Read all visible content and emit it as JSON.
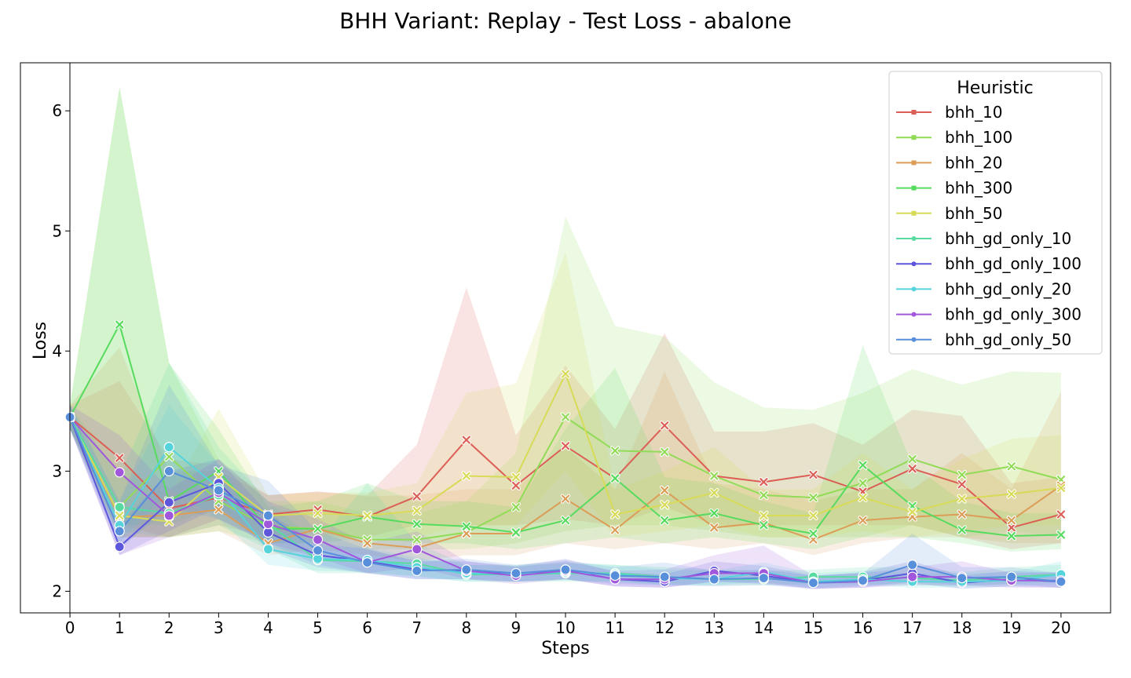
{
  "chart_data": {
    "type": "line",
    "title": "BHH Variant: Replay - Test Loss - abalone",
    "xlabel": "Steps",
    "ylabel": "Loss",
    "xlim": [
      -1,
      21
    ],
    "ylim": [
      1.82,
      6.4
    ],
    "x": [
      0,
      1,
      2,
      3,
      4,
      5,
      6,
      7,
      8,
      9,
      10,
      11,
      12,
      13,
      14,
      15,
      16,
      17,
      18,
      19,
      20
    ],
    "xticks": [
      "0",
      "1",
      "2",
      "3",
      "4",
      "5",
      "6",
      "7",
      "8",
      "9",
      "10",
      "11",
      "12",
      "13",
      "14",
      "15",
      "16",
      "17",
      "18",
      "19",
      "20"
    ],
    "yticks": [
      2,
      3,
      4,
      5,
      6
    ],
    "ytick_labels": [
      "2",
      "3",
      "4",
      "5",
      "6"
    ],
    "legend_title": "Heuristic",
    "legend_position": "upper right",
    "grid": false,
    "series": [
      {
        "name": "bhh_10",
        "color": "#db5f57",
        "marker": "x",
        "values": [
          3.45,
          3.11,
          2.69,
          2.78,
          2.64,
          2.68,
          2.62,
          2.79,
          3.26,
          2.88,
          3.21,
          2.94,
          3.38,
          2.96,
          2.91,
          2.97,
          2.83,
          3.02,
          2.89,
          2.53,
          2.64
        ],
        "band_low": [
          3.35,
          2.55,
          2.45,
          2.55,
          2.45,
          2.48,
          2.45,
          2.55,
          2.55,
          2.55,
          2.6,
          2.55,
          2.7,
          2.55,
          2.55,
          2.55,
          2.55,
          2.55,
          2.45,
          2.35,
          2.4
        ],
        "band_high": [
          3.55,
          3.75,
          3.1,
          3.05,
          2.8,
          2.83,
          2.8,
          3.22,
          4.53,
          3.3,
          3.88,
          3.35,
          4.15,
          3.33,
          3.33,
          3.4,
          3.22,
          3.51,
          3.46,
          2.9,
          2.95
        ]
      },
      {
        "name": "bhh_100",
        "color": "#91db57",
        "marker": "x",
        "values": [
          3.45,
          2.7,
          3.12,
          2.75,
          2.54,
          2.52,
          2.43,
          2.43,
          2.49,
          2.7,
          3.45,
          3.17,
          3.16,
          2.96,
          2.8,
          2.78,
          2.9,
          3.1,
          2.97,
          3.04,
          2.93
        ],
        "band_low": [
          3.35,
          2.45,
          2.45,
          2.5,
          2.4,
          2.4,
          2.35,
          2.35,
          2.35,
          2.4,
          2.5,
          2.55,
          2.55,
          2.5,
          2.45,
          2.45,
          2.45,
          2.55,
          2.45,
          2.5,
          2.45
        ],
        "band_high": [
          3.55,
          6.2,
          3.9,
          3.1,
          2.75,
          2.75,
          2.65,
          2.65,
          2.75,
          3.15,
          5.12,
          4.21,
          4.12,
          3.74,
          3.53,
          3.51,
          3.65,
          3.85,
          3.72,
          3.83,
          3.82
        ]
      },
      {
        "name": "bhh_20",
        "color": "#db9d57",
        "marker": "x",
        "values": [
          3.45,
          2.62,
          2.63,
          2.68,
          2.4,
          2.52,
          2.4,
          2.36,
          2.48,
          2.48,
          2.77,
          2.51,
          2.84,
          2.53,
          2.57,
          2.43,
          2.59,
          2.62,
          2.64,
          2.59,
          2.88
        ],
        "band_low": [
          3.35,
          2.45,
          2.45,
          2.5,
          2.3,
          2.35,
          2.3,
          2.25,
          2.3,
          2.3,
          2.4,
          2.35,
          2.4,
          2.35,
          2.4,
          2.3,
          2.4,
          2.45,
          2.45,
          2.4,
          2.4
        ],
        "band_high": [
          3.55,
          4.03,
          3.0,
          3.0,
          2.8,
          2.83,
          2.79,
          2.8,
          2.85,
          2.85,
          3.2,
          2.85,
          3.83,
          2.9,
          2.85,
          2.75,
          2.85,
          2.85,
          3.15,
          2.85,
          3.66
        ]
      },
      {
        "name": "bhh_300",
        "color": "#57db5f",
        "marker": "x",
        "values": [
          3.45,
          4.22,
          2.75,
          3.0,
          2.52,
          2.52,
          2.62,
          2.56,
          2.54,
          2.49,
          2.59,
          2.94,
          2.59,
          2.65,
          2.55,
          2.48,
          3.05,
          2.71,
          2.51,
          2.46,
          2.47
        ],
        "band_low": [
          3.35,
          2.55,
          2.55,
          2.7,
          2.4,
          2.4,
          2.45,
          2.4,
          2.4,
          2.35,
          2.4,
          2.45,
          2.4,
          2.45,
          2.4,
          2.35,
          2.45,
          2.45,
          2.4,
          2.33,
          2.35
        ],
        "band_high": [
          3.55,
          6.2,
          3.9,
          3.35,
          2.7,
          2.75,
          2.9,
          2.75,
          2.75,
          2.7,
          3.35,
          3.86,
          2.95,
          2.9,
          2.75,
          2.65,
          4.05,
          3.05,
          2.75,
          2.65,
          2.65
        ]
      },
      {
        "name": "bhh_50",
        "color": "#d7db57",
        "marker": "x",
        "values": [
          3.45,
          2.63,
          2.58,
          2.95,
          2.63,
          2.65,
          2.63,
          2.67,
          2.96,
          2.95,
          3.81,
          2.64,
          2.72,
          2.82,
          2.63,
          2.63,
          2.78,
          2.66,
          2.77,
          2.81,
          2.86
        ],
        "band_low": [
          3.35,
          2.45,
          2.45,
          2.6,
          2.45,
          2.45,
          2.45,
          2.45,
          2.55,
          2.55,
          3.0,
          2.45,
          2.5,
          2.55,
          2.45,
          2.45,
          2.5,
          2.45,
          2.5,
          2.55,
          2.55
        ],
        "band_high": [
          3.55,
          3.05,
          2.8,
          3.52,
          2.8,
          2.82,
          2.82,
          2.9,
          3.65,
          3.73,
          4.82,
          2.85,
          3.0,
          3.2,
          2.85,
          2.85,
          3.15,
          2.85,
          3.1,
          3.27,
          3.3
        ]
      },
      {
        "name": "bhh_gd_only_10",
        "color": "#57dba0",
        "marker": "o",
        "values": [
          3.45,
          2.7,
          2.65,
          2.8,
          2.56,
          2.26,
          2.25,
          2.23,
          2.14,
          2.14,
          2.15,
          2.15,
          2.12,
          2.1,
          2.1,
          2.12,
          2.12,
          2.11,
          2.09,
          2.12,
          2.14
        ],
        "band_low": [
          3.35,
          2.5,
          2.45,
          2.55,
          2.35,
          2.15,
          2.15,
          2.13,
          2.08,
          2.08,
          2.08,
          2.08,
          2.06,
          2.05,
          2.05,
          2.06,
          2.06,
          2.05,
          2.04,
          2.06,
          2.08
        ],
        "band_high": [
          3.55,
          2.95,
          3.9,
          3.2,
          2.75,
          2.4,
          2.9,
          2.4,
          2.22,
          2.22,
          2.24,
          2.22,
          2.2,
          2.18,
          2.17,
          2.18,
          2.2,
          2.2,
          2.16,
          2.2,
          2.22
        ]
      },
      {
        "name": "bhh_gd_only_100",
        "color": "#5f57db",
        "marker": "o",
        "values": [
          3.45,
          2.37,
          2.74,
          2.9,
          2.49,
          2.3,
          2.25,
          2.18,
          2.17,
          2.14,
          2.18,
          2.1,
          2.08,
          2.17,
          2.13,
          2.07,
          2.09,
          2.15,
          2.07,
          2.1,
          2.08
        ],
        "band_low": [
          3.35,
          2.3,
          2.5,
          2.7,
          2.35,
          2.2,
          2.15,
          2.1,
          2.1,
          2.08,
          2.1,
          2.04,
          2.03,
          2.08,
          2.06,
          2.02,
          2.03,
          2.07,
          2.02,
          2.04,
          2.03
        ],
        "band_high": [
          3.55,
          2.55,
          3.0,
          3.1,
          2.65,
          2.4,
          2.35,
          2.25,
          2.25,
          2.21,
          2.27,
          2.16,
          2.14,
          2.25,
          2.21,
          2.13,
          2.16,
          2.25,
          2.13,
          2.17,
          2.15
        ]
      },
      {
        "name": "bhh_gd_only_20",
        "color": "#57d3db",
        "marker": "o",
        "values": [
          3.45,
          2.55,
          3.2,
          2.86,
          2.35,
          2.27,
          2.26,
          2.2,
          2.15,
          2.14,
          2.16,
          2.14,
          2.11,
          2.1,
          2.16,
          2.08,
          2.1,
          2.08,
          2.08,
          2.09,
          2.14
        ],
        "band_low": [
          3.35,
          2.4,
          2.85,
          2.6,
          2.22,
          2.17,
          2.16,
          2.12,
          2.08,
          2.08,
          2.09,
          2.08,
          2.05,
          2.05,
          2.08,
          2.03,
          2.05,
          2.03,
          2.03,
          2.04,
          2.06
        ],
        "band_high": [
          3.55,
          2.75,
          3.55,
          3.05,
          2.55,
          2.38,
          2.36,
          2.28,
          2.22,
          2.21,
          2.23,
          2.22,
          2.18,
          2.17,
          2.24,
          2.15,
          2.17,
          2.15,
          2.15,
          2.16,
          2.25
        ]
      },
      {
        "name": "bhh_gd_only_300",
        "color": "#a157db",
        "marker": "o",
        "values": [
          3.45,
          2.99,
          2.63,
          2.82,
          2.56,
          2.43,
          2.24,
          2.35,
          2.17,
          2.13,
          2.17,
          2.1,
          2.1,
          2.15,
          2.15,
          2.07,
          2.08,
          2.12,
          2.12,
          2.09,
          2.09
        ],
        "band_low": [
          3.35,
          2.3,
          2.45,
          2.6,
          2.4,
          2.28,
          2.15,
          2.2,
          2.1,
          2.06,
          2.1,
          2.04,
          2.03,
          2.08,
          2.07,
          2.02,
          2.03,
          2.05,
          2.05,
          2.03,
          2.03
        ],
        "band_high": [
          3.55,
          3.3,
          2.85,
          3.1,
          2.75,
          2.6,
          2.4,
          2.5,
          2.25,
          2.2,
          2.25,
          2.17,
          2.18,
          2.3,
          2.38,
          2.13,
          2.15,
          2.2,
          2.25,
          2.15,
          2.16
        ]
      },
      {
        "name": "bhh_gd_only_50",
        "color": "#578fdb",
        "marker": "o",
        "values": [
          3.45,
          2.5,
          3.0,
          2.84,
          2.63,
          2.34,
          2.24,
          2.17,
          2.18,
          2.15,
          2.18,
          2.13,
          2.12,
          2.1,
          2.11,
          2.07,
          2.09,
          2.22,
          2.11,
          2.12,
          2.08
        ],
        "band_low": [
          3.35,
          2.35,
          2.7,
          2.6,
          2.4,
          2.22,
          2.15,
          2.1,
          2.1,
          2.08,
          2.1,
          2.06,
          2.05,
          2.04,
          2.05,
          2.02,
          2.04,
          2.08,
          2.05,
          2.06,
          2.03
        ],
        "band_high": [
          3.55,
          2.75,
          3.72,
          3.05,
          2.92,
          2.5,
          2.35,
          2.25,
          2.27,
          2.22,
          2.26,
          2.2,
          2.24,
          2.17,
          2.18,
          2.13,
          2.15,
          2.48,
          2.2,
          2.2,
          2.15
        ]
      }
    ]
  }
}
